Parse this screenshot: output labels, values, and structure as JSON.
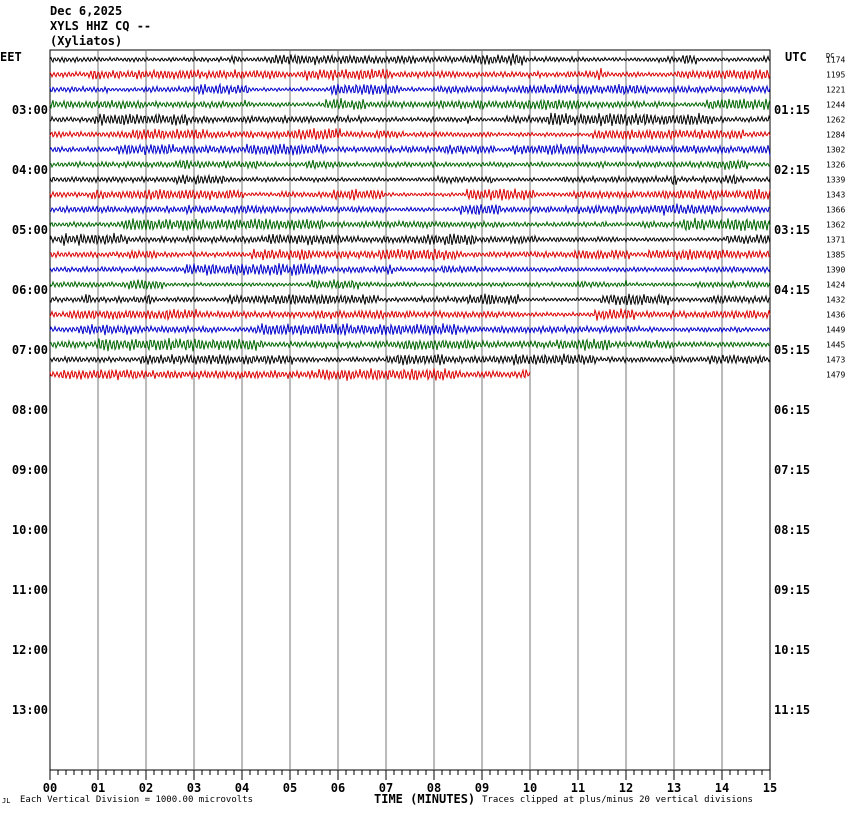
{
  "header": {
    "date": "Dec 6,2025",
    "channel": "XYLS HHZ CQ --",
    "station": "(Xyliatos)"
  },
  "footer": {
    "scale_note": "Each Vertical Division = 1000.00 microvolts",
    "clip_note": "Traces clipped at plus/minus 20 vertical divisions",
    "corner_mark": "JL"
  },
  "chart_data": {
    "type": "line",
    "xlabel": "TIME (MINUTES)",
    "xlim": [
      0,
      15
    ],
    "x_ticks": [
      "00",
      "01",
      "02",
      "03",
      "04",
      "05",
      "06",
      "07",
      "08",
      "09",
      "10",
      "11",
      "12",
      "13",
      "14",
      "15"
    ],
    "left_axis_label": "EET",
    "right_axis_label": "UTC",
    "dc_label": "DC",
    "left_hour_labels": [
      "03:00",
      "04:00",
      "05:00",
      "06:00",
      "07:00",
      "08:00",
      "09:00",
      "10:00",
      "11:00",
      "12:00",
      "13:00"
    ],
    "right_hour_labels": [
      "01:15",
      "02:15",
      "03:15",
      "04:15",
      "05:15",
      "06:15",
      "07:15",
      "08:15",
      "09:15",
      "10:15",
      "11:15"
    ],
    "rows_total": 48,
    "rows_per_hour": 4,
    "trace_colors": [
      "#000000",
      "#dd0000",
      "#0000cc",
      "#006600"
    ],
    "series": [
      {
        "row": 0,
        "dc": "1174",
        "duration_min": 15
      },
      {
        "row": 1,
        "dc": "1195",
        "duration_min": 15
      },
      {
        "row": 2,
        "dc": "1221",
        "duration_min": 15
      },
      {
        "row": 3,
        "dc": "1244",
        "duration_min": 15
      },
      {
        "row": 4,
        "dc": "1262",
        "duration_min": 15
      },
      {
        "row": 5,
        "dc": "1284",
        "duration_min": 15
      },
      {
        "row": 6,
        "dc": "1302",
        "duration_min": 15
      },
      {
        "row": 7,
        "dc": "1326",
        "duration_min": 15
      },
      {
        "row": 8,
        "dc": "1339",
        "duration_min": 15
      },
      {
        "row": 9,
        "dc": "1343",
        "duration_min": 15
      },
      {
        "row": 10,
        "dc": "1366",
        "duration_min": 15
      },
      {
        "row": 11,
        "dc": "1362",
        "duration_min": 15
      },
      {
        "row": 12,
        "dc": "1371",
        "duration_min": 15
      },
      {
        "row": 13,
        "dc": "1385",
        "duration_min": 15
      },
      {
        "row": 14,
        "dc": "1390",
        "duration_min": 15
      },
      {
        "row": 15,
        "dc": "1424",
        "duration_min": 15
      },
      {
        "row": 16,
        "dc": "1432",
        "duration_min": 15
      },
      {
        "row": 17,
        "dc": "1436",
        "duration_min": 15
      },
      {
        "row": 18,
        "dc": "1449",
        "duration_min": 15
      },
      {
        "row": 19,
        "dc": "1445",
        "duration_min": 15
      },
      {
        "row": 20,
        "dc": "1473",
        "duration_min": 15
      },
      {
        "row": 21,
        "dc": "1479",
        "duration_min": 10
      }
    ]
  }
}
